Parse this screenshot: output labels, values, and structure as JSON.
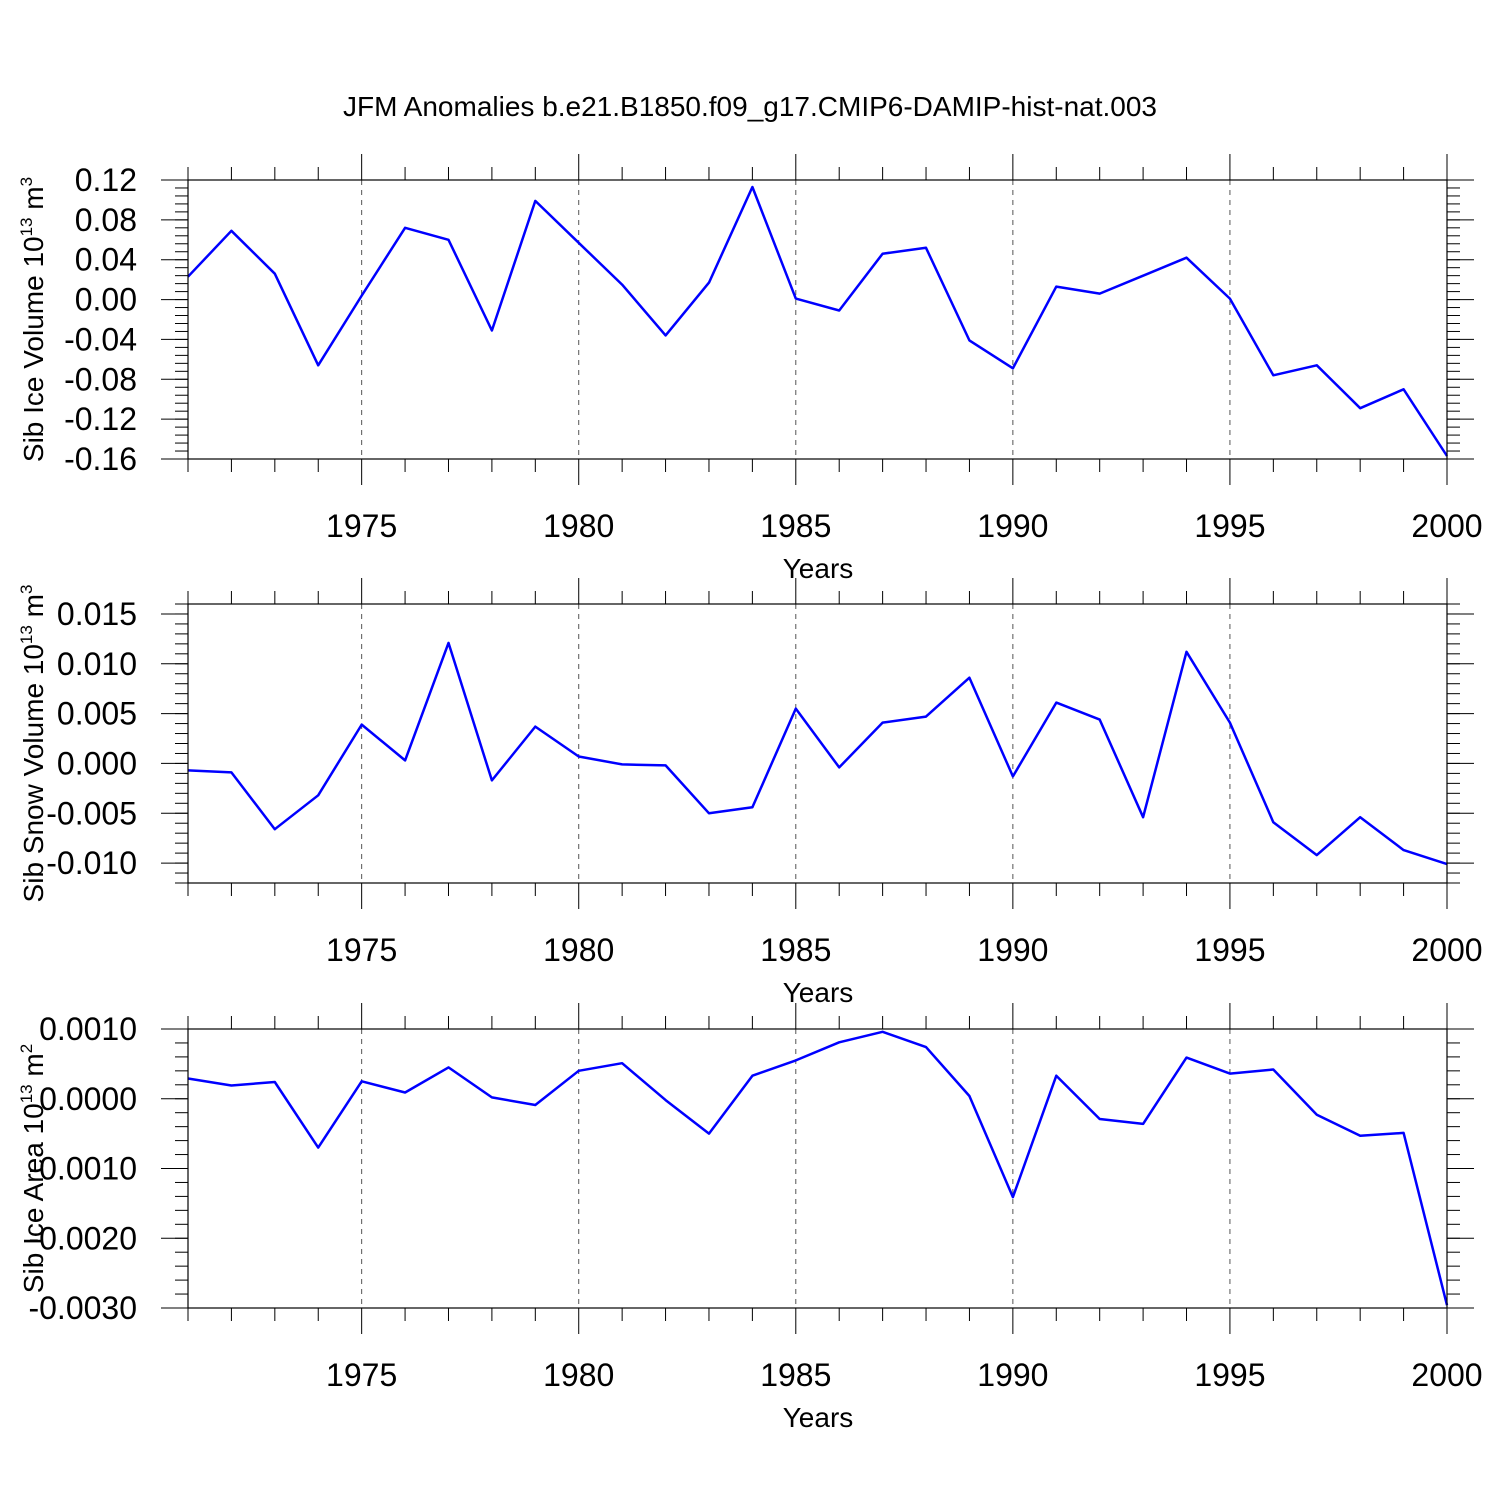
{
  "title": "JFM Anomalies b.e21.B1850.f09_g17.CMIP6-DAMIP-hist-nat.003",
  "colors": {
    "line": "#0000ff",
    "axis": "#000000",
    "grid": "#555555",
    "background": "#ffffff"
  },
  "chart_data": [
    {
      "type": "line",
      "ylabel": {
        "main": "Sib Ice Volume 10",
        "exponent": "13",
        "unit": " m",
        "unit_exponent": "3"
      },
      "xlabel": "Years",
      "xlim": [
        1971,
        2000
      ],
      "ylim": [
        -0.16,
        0.12
      ],
      "yticks": [
        -0.16,
        -0.12,
        -0.08,
        -0.04,
        0.0,
        0.04,
        0.08,
        0.12
      ],
      "ytick_labels": [
        "-0.16",
        "-0.12",
        "-0.08",
        "-0.04",
        "0.00",
        "0.04",
        "0.08",
        "0.12"
      ],
      "yminor_step": 0.008,
      "xticks": [
        1975,
        1980,
        1985,
        1990,
        1995,
        2000
      ],
      "xtick_labels": [
        "1975",
        "1980",
        "1985",
        "1990",
        "1995",
        "2000"
      ],
      "grid": "dashed vertical at major x ticks",
      "x": [
        1971,
        1972,
        1973,
        1974,
        1975,
        1976,
        1977,
        1978,
        1979,
        1980,
        1981,
        1982,
        1983,
        1984,
        1985,
        1986,
        1987,
        1988,
        1989,
        1990,
        1991,
        1992,
        1993,
        1994,
        1995,
        1996,
        1997,
        1998,
        1999,
        2000
      ],
      "series": [
        {
          "name": "Sib Ice Volume",
          "values": [
            0.023,
            0.069,
            0.026,
            -0.066,
            0.004,
            0.072,
            0.06,
            -0.031,
            0.099,
            0.057,
            0.015,
            -0.036,
            0.017,
            0.113,
            0.001,
            -0.011,
            0.046,
            0.052,
            -0.041,
            -0.069,
            0.013,
            0.006,
            0.024,
            0.042,
            0.001,
            -0.076,
            -0.066,
            -0.109,
            -0.09,
            -0.157
          ]
        }
      ]
    },
    {
      "type": "line",
      "ylabel": {
        "main": "Sib Snow Volume 10",
        "exponent": "13",
        "unit": " m",
        "unit_exponent": "3"
      },
      "xlabel": "Years",
      "xlim": [
        1971,
        2000
      ],
      "ylim": [
        -0.012,
        0.016
      ],
      "yticks": [
        -0.01,
        -0.005,
        0.0,
        0.005,
        0.01,
        0.015
      ],
      "ytick_labels": [
        "-0.010",
        "-0.005",
        "0.000",
        "0.005",
        "0.010",
        "0.015"
      ],
      "yminor_step": 0.001,
      "xticks": [
        1975,
        1980,
        1985,
        1990,
        1995,
        2000
      ],
      "xtick_labels": [
        "1975",
        "1980",
        "1985",
        "1990",
        "1995",
        "2000"
      ],
      "grid": "dashed vertical at major x ticks",
      "x": [
        1971,
        1972,
        1973,
        1974,
        1975,
        1976,
        1977,
        1978,
        1979,
        1980,
        1981,
        1982,
        1983,
        1984,
        1985,
        1986,
        1987,
        1988,
        1989,
        1990,
        1991,
        1992,
        1993,
        1994,
        1995,
        1996,
        1997,
        1998,
        1999,
        2000
      ],
      "series": [
        {
          "name": "Sib Snow Volume",
          "values": [
            -0.0007,
            -0.0009,
            -0.0066,
            -0.0032,
            0.0039,
            0.0003,
            0.0121,
            -0.0017,
            0.0037,
            0.0007,
            -0.0001,
            -0.0002,
            -0.005,
            -0.0044,
            0.0055,
            -0.0004,
            0.0041,
            0.0047,
            0.0086,
            -0.0013,
            0.0061,
            0.0044,
            -0.0054,
            0.0112,
            0.0041,
            -0.0059,
            -0.0092,
            -0.0054,
            -0.0087,
            -0.0101
          ]
        }
      ]
    },
    {
      "type": "line",
      "ylabel": {
        "main": "Sib Ice Area 10",
        "exponent": "13",
        "unit": " m",
        "unit_exponent": "2"
      },
      "xlabel": "Years",
      "xlim": [
        1971,
        2000
      ],
      "ylim": [
        -0.003,
        0.001
      ],
      "yticks": [
        -0.003,
        -0.002,
        -0.001,
        0.0,
        0.001
      ],
      "ytick_labels": [
        "-0.0030",
        "-0.0020",
        "-0.0010",
        "0.0000",
        "0.0010"
      ],
      "yminor_step": 0.0002,
      "xticks": [
        1975,
        1980,
        1985,
        1990,
        1995,
        2000
      ],
      "xtick_labels": [
        "1975",
        "1980",
        "1985",
        "1990",
        "1995",
        "2000"
      ],
      "grid": "dashed vertical at major x ticks",
      "x": [
        1971,
        1972,
        1973,
        1974,
        1975,
        1976,
        1977,
        1978,
        1979,
        1980,
        1981,
        1982,
        1983,
        1984,
        1985,
        1986,
        1987,
        1988,
        1989,
        1990,
        1991,
        1992,
        1993,
        1994,
        1995,
        1996,
        1997,
        1998,
        1999,
        2000
      ],
      "series": [
        {
          "name": "Sib Ice Area",
          "values": [
            0.00029,
            0.00019,
            0.00024,
            -0.0007,
            0.00025,
            9e-05,
            0.00045,
            2e-05,
            -9e-05,
            0.0004,
            0.00051,
            -2e-05,
            -0.0005,
            0.00033,
            0.00055,
            0.00081,
            0.00096,
            0.00074,
            4e-05,
            -0.00141,
            0.00033,
            -0.00029,
            -0.00036,
            0.00059,
            0.00036,
            0.00042,
            -0.00023,
            -0.00053,
            -0.00049,
            -0.00296
          ]
        }
      ]
    }
  ]
}
